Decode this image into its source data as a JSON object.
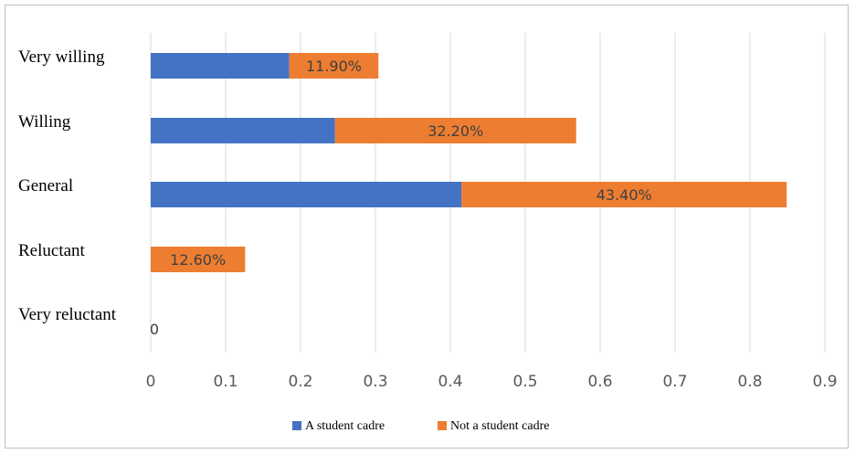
{
  "chart_data": {
    "type": "bar",
    "orientation": "horizontal",
    "stacked": true,
    "categories": [
      "Very willing",
      "Willing",
      "General",
      "Reluctant",
      "Very reluctant"
    ],
    "series": [
      {
        "name": "A student cadre",
        "color": "#4472C4",
        "values": [
          0.185,
          0.246,
          0.415,
          0,
          0
        ],
        "labels": [
          "",
          "",
          "",
          "",
          ""
        ]
      },
      {
        "name": "Not a student cadre",
        "color": "#ED7D31",
        "values": [
          0.119,
          0.322,
          0.434,
          0.126,
          0
        ],
        "labels": [
          "11.90%",
          "32.20%",
          "43.40%",
          "12.60%",
          "0"
        ]
      }
    ],
    "xticks": [
      "0",
      "0.1",
      "0.2",
      "0.3",
      "0.4",
      "0.5",
      "0.6",
      "0.7",
      "0.8",
      "0.9"
    ],
    "xlim": [
      0,
      0.9
    ],
    "grid": "vertical",
    "legend_position": "bottom",
    "gridline_color": "#d9d9d9"
  }
}
